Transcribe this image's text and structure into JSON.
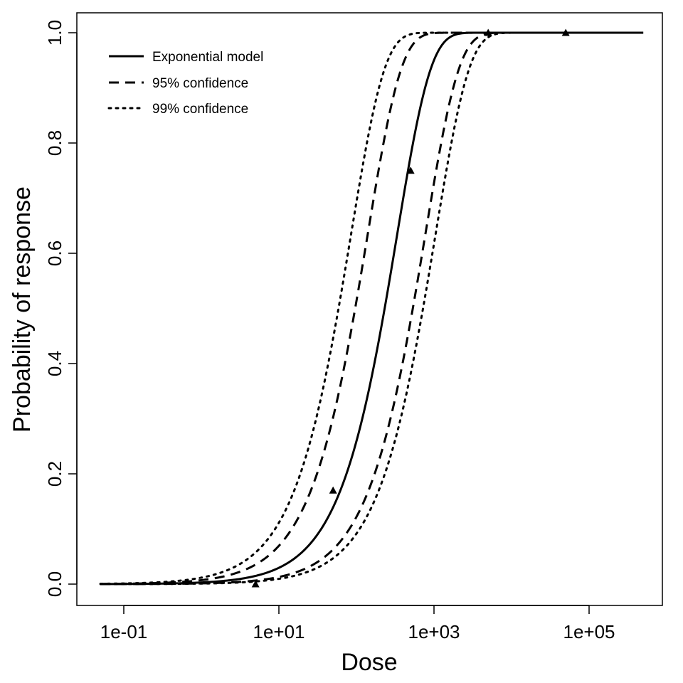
{
  "chart_data": {
    "type": "line",
    "title": "",
    "xlabel": "Dose",
    "ylabel": "Probability of response",
    "x_scale": "log10",
    "xlim": [
      0.05,
      500000
    ],
    "ylim": [
      0,
      1
    ],
    "x_ticks": [
      {
        "value": 0.1,
        "label": "1e-01"
      },
      {
        "value": 10,
        "label": "1e+01"
      },
      {
        "value": 1000,
        "label": "1e+03"
      },
      {
        "value": 100000,
        "label": "1e+05"
      }
    ],
    "y_ticks": [
      {
        "value": 0.0,
        "label": "0.0"
      },
      {
        "value": 0.2,
        "label": "0.2"
      },
      {
        "value": 0.4,
        "label": "0.4"
      },
      {
        "value": 0.6,
        "label": "0.6"
      },
      {
        "value": 0.8,
        "label": "0.8"
      },
      {
        "value": 1.0,
        "label": "1.0"
      }
    ],
    "grid": false,
    "legend_position": "top-left",
    "series": [
      {
        "name": "Exponential model",
        "style": "solid",
        "model": "exponential",
        "k": 0.003
      },
      {
        "name": "95% confidence",
        "style": "dashed",
        "model": "exponential",
        "k_lower": 0.0013,
        "k_upper": 0.0072
      },
      {
        "name": "99% confidence",
        "style": "dotted",
        "model": "exponential",
        "k_lower": 0.00096,
        "k_upper": 0.0118
      }
    ],
    "observations": [
      {
        "x": 5,
        "y": 0.0
      },
      {
        "x": 50,
        "y": 0.17
      },
      {
        "x": 500,
        "y": 0.75
      },
      {
        "x": 5000,
        "y": 1.0
      },
      {
        "x": 50000,
        "y": 1.0
      }
    ],
    "marker": "triangle",
    "color": "#000000"
  }
}
